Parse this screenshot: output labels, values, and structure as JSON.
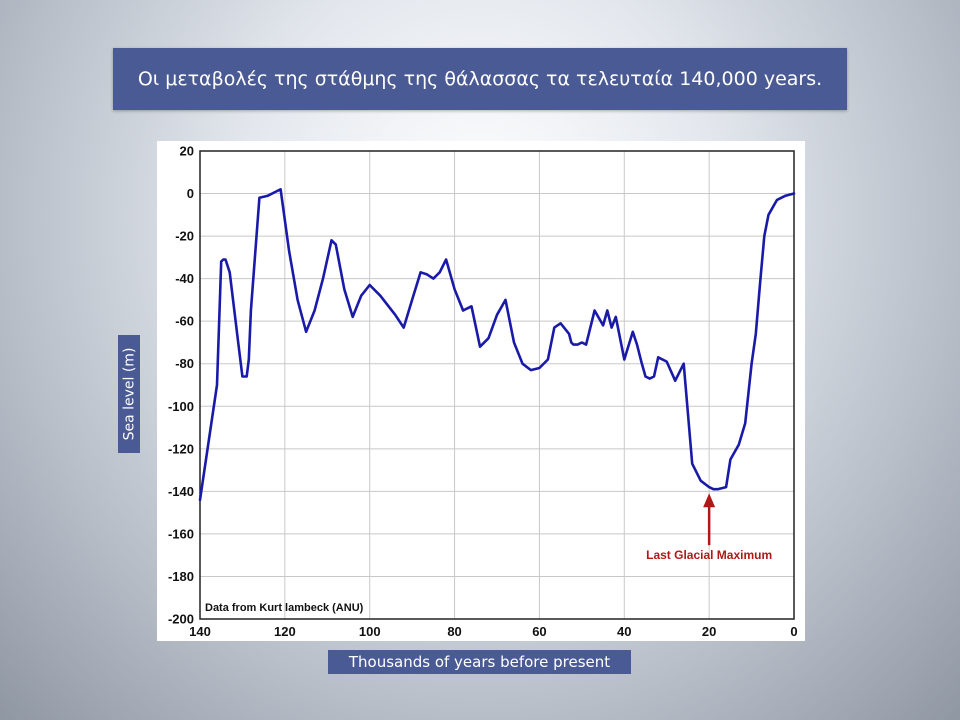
{
  "title": "Οι μεταβολές της στάθμης της θάλασσας τα τελευταία 140,000 years.",
  "colors": {
    "banner": "#4a5a94",
    "line": "#1a1aa8",
    "annotation": "#b01818",
    "grid": "#c8c8c8"
  },
  "chart_data": {
    "type": "line",
    "title": "Οι μεταβολές της στάθμης της θάλασσας τα τελευταία 140,000 years.",
    "xlabel": "Thousands of years before present",
    "ylabel": "Sea level (m)",
    "xlim": [
      140,
      0
    ],
    "ylim": [
      -200,
      20
    ],
    "x_reversed": true,
    "grid": true,
    "xticks": [
      140,
      120,
      100,
      80,
      60,
      40,
      20,
      0
    ],
    "yticks": [
      20,
      0,
      -20,
      -40,
      -60,
      -80,
      -100,
      -120,
      -140,
      -160,
      -180,
      -200
    ],
    "source_note": "Data from Kurt lambeck (ANU)",
    "annotation": {
      "text": "Last Glacial Maximum",
      "x": 20,
      "y": -139,
      "text_y": -170
    },
    "series": [
      {
        "x": [
          140,
          136,
          135,
          134.5,
          134,
          133,
          131,
          130,
          129,
          128.5,
          128,
          126,
          124,
          122,
          121,
          119,
          117,
          115,
          113,
          111,
          109,
          108,
          106,
          104,
          102,
          100,
          97.5,
          94,
          92,
          90,
          88,
          86.5,
          85,
          83.5,
          82,
          80,
          78,
          76,
          74,
          72,
          70,
          68,
          66,
          64,
          62,
          60,
          58,
          56.5,
          55,
          53,
          52.5,
          52,
          51.5,
          51,
          50,
          49,
          47,
          45,
          44,
          43,
          42,
          40,
          38,
          37,
          36,
          35,
          34,
          33,
          32,
          30,
          28,
          26,
          24,
          22,
          20,
          19,
          18,
          16,
          15,
          13,
          11.5,
          10,
          9,
          8,
          7,
          6,
          4,
          2,
          0
        ],
        "values": [
          -144,
          -90,
          -32,
          -31,
          -31,
          -37,
          -70,
          -86,
          -86,
          -78,
          -55,
          -2,
          -1,
          1,
          2,
          -27,
          -50,
          -65,
          -55,
          -40,
          -22,
          -24,
          -45,
          -58,
          -48,
          -43,
          -48,
          -57,
          -63,
          -50,
          -37,
          -38,
          -40,
          -37,
          -31,
          -45,
          -55,
          -53,
          -72,
          -68,
          -57,
          -50,
          -70,
          -80,
          -83,
          -82,
          -78,
          -63,
          -61,
          -66,
          -70,
          -71,
          -71,
          -71,
          -70,
          -71,
          -55,
          -62,
          -55,
          -63,
          -58,
          -78,
          -65,
          -71,
          -79,
          -86,
          -87,
          -86,
          -77,
          -79,
          -88,
          -80,
          -127,
          -135,
          -138,
          -139,
          -139,
          -138,
          -125,
          -118,
          -108,
          -80,
          -66,
          -42,
          -20,
          -10,
          -3,
          -1,
          0
        ]
      }
    ]
  }
}
